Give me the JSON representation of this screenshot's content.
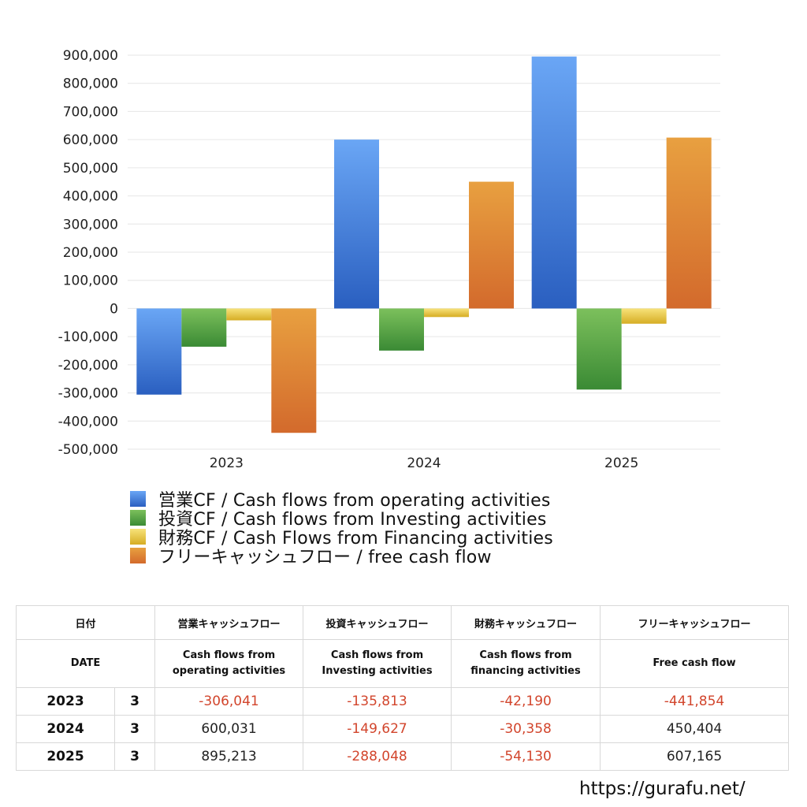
{
  "chart_data": {
    "type": "bar",
    "categories": [
      "2023",
      "2024",
      "2025"
    ],
    "series": [
      {
        "name": "営業CF / Cash flows from operating activities",
        "values": [
          -306041,
          600031,
          895213
        ],
        "color": "#3a7fe0"
      },
      {
        "name": "投資CF / Cash flows from Investing activities",
        "values": [
          -135813,
          -149627,
          -288048
        ],
        "color": "#4f9e3c"
      },
      {
        "name": "財務CF / Cash Flows from Financing activities",
        "values": [
          -42190,
          -30358,
          -54130
        ],
        "color": "#e3c43a"
      },
      {
        "name": "フリーキャッシュフロー / free cash flow",
        "values": [
          -441854,
          450404,
          607165
        ],
        "color": "#e07d2e"
      }
    ],
    "ylim": [
      -500000,
      900000
    ],
    "yticks": [
      "900,000",
      "800,000",
      "700,000",
      "600,000",
      "500,000",
      "400,000",
      "300,000",
      "200,000",
      "100,000",
      "0",
      "-100,000",
      "-200,000",
      "-300,000",
      "-400,000",
      "-500,000"
    ],
    "grid": true,
    "legend_position": "bottom"
  },
  "table": {
    "header1": [
      "日付",
      "営業キャッシュフロー",
      "投資キャッシュフロー",
      "財務キャッシュフロー",
      "フリーキャッシュフロー"
    ],
    "header2": [
      "DATE",
      "Cash flows from operating activities",
      "Cash flows from Investing activities",
      "Cash flows from financing activities",
      "Free cash flow"
    ],
    "rows": [
      {
        "year": "2023",
        "month": "3",
        "operating": "-306,041",
        "investing": "-135,813",
        "financing": "-42,190",
        "free": "-441,854"
      },
      {
        "year": "2024",
        "month": "3",
        "operating": "600,031",
        "investing": "-149,627",
        "financing": "-30,358",
        "free": "450,404"
      },
      {
        "year": "2025",
        "month": "3",
        "operating": "895,213",
        "investing": "-288,048",
        "financing": "-54,130",
        "free": "607,165"
      }
    ]
  },
  "source": "https://gurafu.net/"
}
